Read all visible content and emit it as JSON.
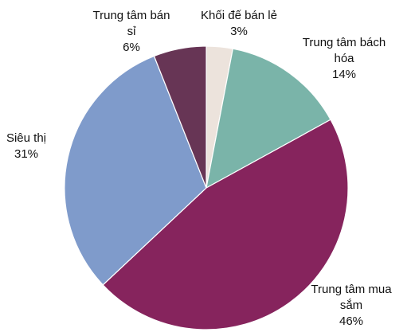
{
  "chart_data": {
    "type": "pie",
    "title": "",
    "slices": [
      {
        "label": "Khối đế bán lẻ",
        "value": 3,
        "value_label": "3%",
        "color": "#ece3dc",
        "label_lines": [
          "Khối đế bán lẻ"
        ]
      },
      {
        "label": "Trung tâm bách hóa",
        "value": 14,
        "value_label": "14%",
        "color": "#7ab4a9",
        "label_lines": [
          "Trung tâm bách",
          "hóa"
        ]
      },
      {
        "label": "Trung tâm mua sắm",
        "value": 46,
        "value_label": "46%",
        "color": "#86245d",
        "label_lines": [
          "Trung tâm mua",
          "sắm"
        ]
      },
      {
        "label": "Siêu thị",
        "value": 31,
        "value_label": "31%",
        "color": "#7f9bcb",
        "label_lines": [
          "Siêu thị"
        ]
      },
      {
        "label": "Trung tâm bán sỉ",
        "value": 6,
        "value_label": "6%",
        "color": "#673555",
        "label_lines": [
          "Trung tâm bán",
          "sỉ"
        ]
      }
    ]
  }
}
